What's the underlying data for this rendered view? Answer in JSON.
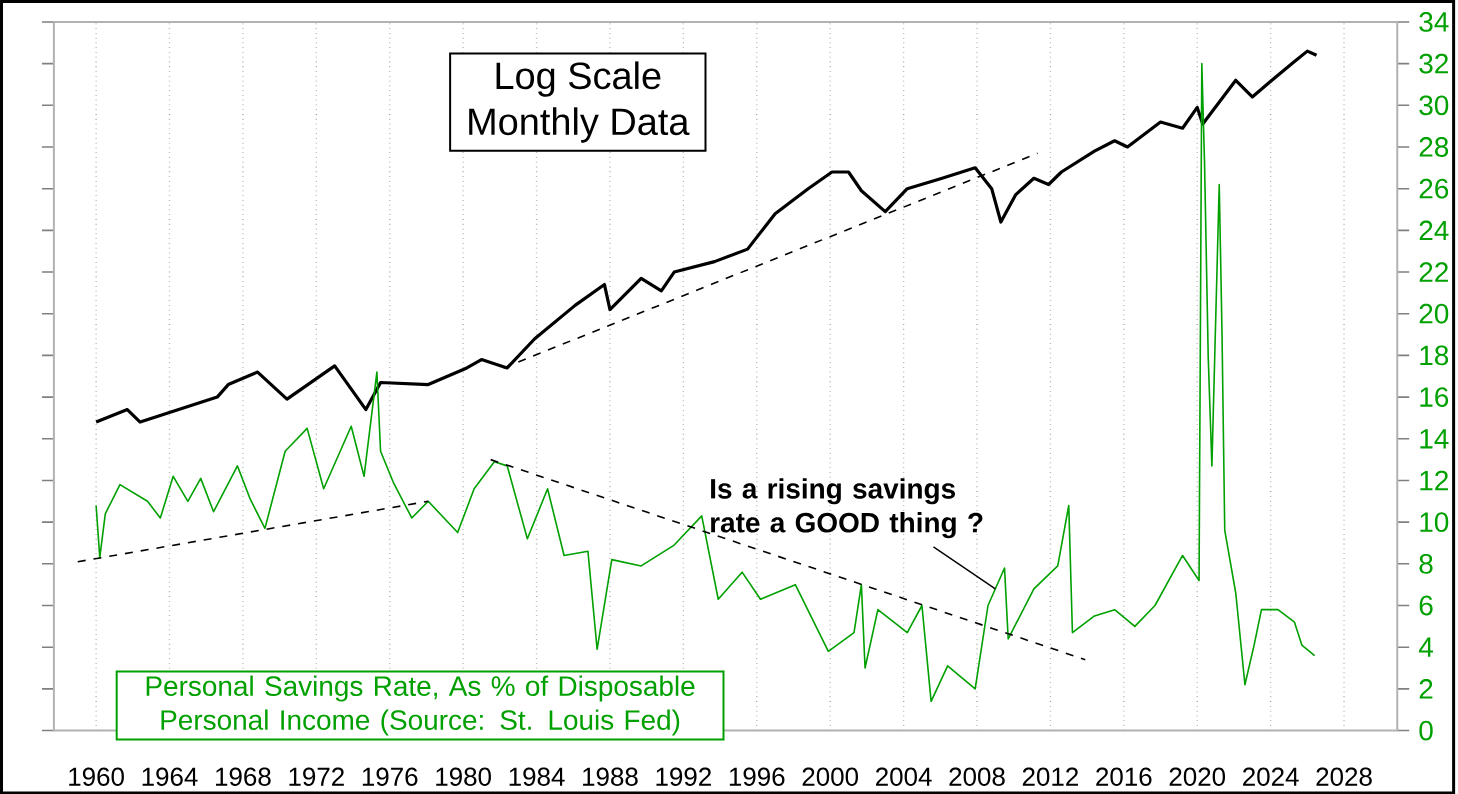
{
  "chart_data": {
    "type": "line",
    "title": "Log Scale",
    "subtitle": "Monthly Data",
    "xlim": [
      1957.7,
      2030.9
    ],
    "ylim": [
      0,
      34
    ],
    "xticks": [
      1960,
      1964,
      1968,
      1972,
      1976,
      1980,
      1984,
      1988,
      1992,
      1996,
      2000,
      2004,
      2008,
      2012,
      2016,
      2020,
      2024,
      2028
    ],
    "yticks": [
      0,
      2,
      4,
      6,
      8,
      10,
      12,
      14,
      16,
      18,
      20,
      22,
      24,
      26,
      28,
      30,
      32,
      34
    ],
    "grid": "x",
    "legend": false,
    "line_style": "solid",
    "series": [
      {
        "color": "#000000",
        "x": [
          1960.0,
          1961.7,
          1962.4,
          1966.6,
          1967.2,
          1968.8,
          1970.4,
          1973.0,
          1974.7,
          1975.5,
          1978.1,
          1980.2,
          1981.0,
          1982.4,
          1983.9,
          1986.1,
          1987.7,
          1988.0,
          1989.7,
          1990.8,
          1991.5,
          1993.7,
          1995.5,
          1997.0,
          1998.8,
          2000.1,
          2001.0,
          2001.7,
          2003.0,
          2004.2,
          2006.1,
          2007.9,
          2008.8,
          2009.3,
          2010.1,
          2011.1,
          2011.9,
          2012.6,
          2014.4,
          2015.5,
          2016.2,
          2018.0,
          2019.2,
          2020.0,
          2020.3,
          2022.1,
          2023.0,
          2024.2,
          2025.3,
          2026.0,
          2026.5
        ],
        "values": [
          14.8,
          15.4,
          14.8,
          16.0,
          16.6,
          17.2,
          15.9,
          17.5,
          15.4,
          16.7,
          16.6,
          17.4,
          17.8,
          17.4,
          18.8,
          20.4,
          21.4,
          20.2,
          21.7,
          21.1,
          22.0,
          22.5,
          23.1,
          24.8,
          26.0,
          26.8,
          26.8,
          25.9,
          24.9,
          26.0,
          26.5,
          27.0,
          26.0,
          24.4,
          25.7,
          26.5,
          26.2,
          26.8,
          27.8,
          28.3,
          28.0,
          29.2,
          28.9,
          29.9,
          29.1,
          31.2,
          30.4,
          31.3,
          32.1,
          32.6,
          32.4
        ]
      },
      {
        "name": "Personal Savings Rate, As % of Disposable Personal Income (Source: St. Louis Fed)",
        "color": "#00a000",
        "x": [
          1960.0,
          1960.2,
          1960.5,
          1961.3,
          1962.8,
          1963.5,
          1964.2,
          1965.0,
          1965.7,
          1966.4,
          1967.7,
          1968.4,
          1969.2,
          1970.3,
          1971.5,
          1972.4,
          1973.9,
          1974.6,
          1975.3,
          1975.5,
          1976.2,
          1977.2,
          1978.1,
          1979.7,
          1980.6,
          1981.7,
          1982.4,
          1983.5,
          1984.6,
          1985.5,
          1986.8,
          1987.3,
          1988.1,
          1989.7,
          1991.5,
          1993.0,
          1993.9,
          1995.2,
          1996.2,
          1998.1,
          1999.9,
          2001.3,
          2001.7,
          2001.9,
          2002.6,
          2004.2,
          2005.0,
          2005.5,
          2006.4,
          2007.9,
          2008.6,
          2009.5,
          2009.7,
          2011.1,
          2012.4,
          2013.0,
          2013.2,
          2014.4,
          2015.5,
          2016.6,
          2017.7,
          2019.2,
          2020.1,
          2020.25,
          2020.4,
          2020.6,
          2020.8,
          2021.0,
          2021.2,
          2021.35,
          2021.5,
          2022.1,
          2022.6,
          2023.1,
          2023.5,
          2024.4,
          2025.3,
          2025.7,
          2026.4
        ],
        "values": [
          10.8,
          8.3,
          10.4,
          11.8,
          11.0,
          10.2,
          12.2,
          11.0,
          12.1,
          10.5,
          12.7,
          11.1,
          9.7,
          13.4,
          14.5,
          11.6,
          14.6,
          12.2,
          17.2,
          13.4,
          11.9,
          10.2,
          11.0,
          9.5,
          11.6,
          12.9,
          12.7,
          9.2,
          11.6,
          8.4,
          8.6,
          3.9,
          8.2,
          7.9,
          8.9,
          10.3,
          6.3,
          7.6,
          6.3,
          7.0,
          3.8,
          4.7,
          7.0,
          3.0,
          5.8,
          4.7,
          6.0,
          1.4,
          3.1,
          2.0,
          6.0,
          7.8,
          4.4,
          6.8,
          7.9,
          10.8,
          4.7,
          5.5,
          5.8,
          5.0,
          6.0,
          8.4,
          7.2,
          32.0,
          27.2,
          17.9,
          12.7,
          19.5,
          26.2,
          19.1,
          9.6,
          6.6,
          2.2,
          4.1,
          5.8,
          5.8,
          5.2,
          4.1,
          3.6
        ]
      },
      {
        "color": "#000000",
        "line_style": "dashed",
        "x": [
          1982.2,
          2011.3
        ],
        "values": [
          17.4,
          27.7
        ]
      },
      {
        "color": "#000000",
        "line_style": "dashed",
        "x": [
          1959.0,
          1978.1
        ],
        "values": [
          8.1,
          11.0
        ]
      },
      {
        "color": "#000000",
        "line_style": "dashed",
        "x": [
          1981.5,
          2013.9
        ],
        "values": [
          13.0,
          3.4
        ]
      }
    ],
    "annotations": [
      {
        "text": "Is a rising savings rate a GOOD thing ?",
        "x": 2009.0,
        "y": 6.8
      }
    ]
  }
}
